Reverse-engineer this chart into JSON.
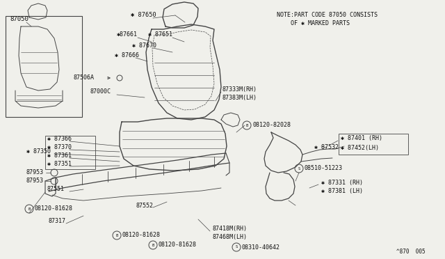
{
  "bg_color": "#f0f0eb",
  "line_color": "#444444",
  "text_color": "#111111",
  "title_note_1": "NOTE:PART CODE 87050 CONSISTS",
  "title_note_2": "OF ✱ MARKED PARTS",
  "diagram_code": "^870  005"
}
